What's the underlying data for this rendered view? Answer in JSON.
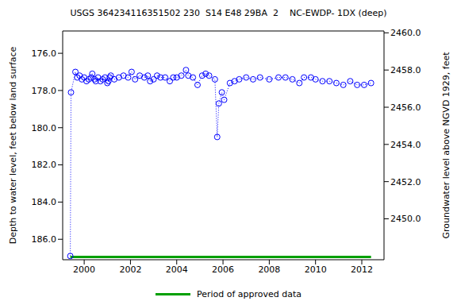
{
  "chart_data": {
    "type": "scatter",
    "title": "USGS 364234116351502 230  S14 E48 29BA  2    NC-EWDP- 1DX (deep)",
    "y_label": "Depth to water level, feet below land surface",
    "y2_label": "Groundwater level above NGVD 1929, feet",
    "xlim": [
      1999.07,
      2012.96
    ],
    "xticks": [
      2000,
      2002,
      2004,
      2006,
      2008,
      2010,
      2012
    ],
    "ylim": [
      174.8,
      187.1
    ],
    "yticks": [
      {
        "value": 176,
        "label": "176.0"
      },
      {
        "value": 178,
        "label": "178.0"
      },
      {
        "value": 180,
        "label": "180.0"
      },
      {
        "value": 182,
        "label": "182.0"
      },
      {
        "value": 184,
        "label": "184.0"
      },
      {
        "value": 186,
        "label": "186.0"
      }
    ],
    "y2lim": [
      2447.8,
      2460.1
    ],
    "y2ticks": [
      {
        "value": 2450,
        "label": "2450.0"
      },
      {
        "value": 2452,
        "label": "2452.0"
      },
      {
        "value": 2454,
        "label": "2454.0"
      },
      {
        "value": 2456,
        "label": "2456.0"
      },
      {
        "value": 2458,
        "label": "2458.0"
      },
      {
        "value": 2460,
        "label": "2460.0"
      }
    ],
    "grid": false,
    "legend": "bottom",
    "series": [
      {
        "color": "#0000ff",
        "marker": "circle",
        "line_style": "dotted",
        "x": [
          1999.4,
          1999.43,
          1999.62,
          1999.7,
          1999.8,
          1999.9,
          2000.0,
          2000.1,
          2000.2,
          2000.3,
          2000.35,
          2000.45,
          2000.5,
          2000.6,
          2000.7,
          2000.8,
          2000.9,
          2001.0,
          2001.05,
          2001.1,
          2001.15,
          2001.3,
          2001.5,
          2001.7,
          2001.9,
          2002.05,
          2002.2,
          2002.4,
          2002.6,
          2002.75,
          2002.85,
          2003.0,
          2003.15,
          2003.3,
          2003.5,
          2003.7,
          2003.85,
          2004.0,
          2004.2,
          2004.4,
          2004.5,
          2004.7,
          2004.9,
          2005.1,
          2005.25,
          2005.4,
          2005.65,
          2005.75,
          2005.82,
          2005.95,
          2006.05,
          2006.3,
          2006.5,
          2006.7,
          2007.0,
          2007.3,
          2007.6,
          2008.0,
          2008.4,
          2008.7,
          2009.0,
          2009.3,
          2009.5,
          2009.8,
          2010.0,
          2010.3,
          2010.6,
          2010.9,
          2011.2,
          2011.5,
          2011.8,
          2012.1,
          2012.4
        ],
        "values": [
          186.9,
          178.1,
          177.0,
          177.3,
          177.2,
          177.4,
          177.3,
          177.5,
          177.4,
          177.3,
          177.1,
          177.4,
          177.5,
          177.3,
          177.5,
          177.4,
          177.3,
          177.6,
          177.5,
          177.3,
          177.2,
          177.4,
          177.3,
          177.2,
          177.3,
          177.0,
          177.4,
          177.2,
          177.3,
          177.2,
          177.5,
          177.4,
          177.2,
          177.3,
          177.3,
          177.5,
          177.3,
          177.3,
          177.2,
          176.9,
          177.2,
          177.3,
          177.7,
          177.2,
          177.1,
          177.2,
          177.4,
          180.5,
          178.7,
          178.1,
          178.5,
          177.6,
          177.5,
          177.4,
          177.3,
          177.4,
          177.3,
          177.4,
          177.3,
          177.3,
          177.4,
          177.6,
          177.3,
          177.3,
          177.4,
          177.5,
          177.5,
          177.6,
          177.7,
          177.5,
          177.7,
          177.7,
          177.6
        ]
      },
      {
        "name": "Period of approved data",
        "color": "#00a000",
        "marker": "none",
        "line_style": "solid",
        "x": [
          1999.4,
          2012.4
        ],
        "values": [
          186.95,
          186.95
        ]
      }
    ]
  }
}
